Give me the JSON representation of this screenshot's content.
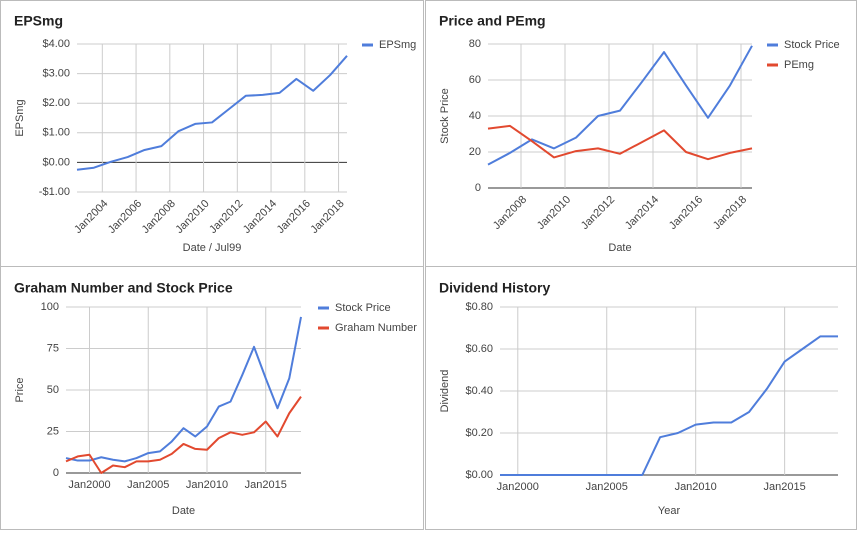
{
  "chart_data": [
    {
      "type": "line",
      "title": "EPSmg",
      "xlabel": "Date / Jul99",
      "ylabel": "EPSmg",
      "x": [
        "2002-07",
        "2003-07",
        "2004-07",
        "2005-07",
        "2006-07",
        "2007-07",
        "2008-07",
        "2009-07",
        "2010-07",
        "2011-07",
        "2012-07",
        "2013-07",
        "2014-07",
        "2015-07",
        "2016-07",
        "2017-07",
        "2018-07"
      ],
      "series": [
        {
          "name": "EPSmg",
          "color": "#4f7ddb",
          "values": [
            -0.25,
            -0.18,
            0.02,
            0.18,
            0.42,
            0.55,
            1.05,
            1.3,
            1.35,
            1.8,
            2.25,
            2.28,
            2.35,
            2.82,
            2.42,
            2.95,
            3.6
          ]
        }
      ],
      "xlim": [
        "2002-07",
        "2018-07"
      ],
      "xticks": [
        {
          "value": "2004-01",
          "label": "Jan2004"
        },
        {
          "value": "2006-01",
          "label": "Jan2006"
        },
        {
          "value": "2008-01",
          "label": "Jan2008"
        },
        {
          "value": "2010-01",
          "label": "Jan2010"
        },
        {
          "value": "2012-01",
          "label": "Jan2012"
        },
        {
          "value": "2014-01",
          "label": "Jan2014"
        },
        {
          "value": "2016-01",
          "label": "Jan2016"
        },
        {
          "value": "2018-01",
          "label": "Jan2018"
        }
      ],
      "ylim": [
        -1,
        4
      ],
      "yticks": [
        {
          "value": -1,
          "label": "-$1.00"
        },
        {
          "value": 0,
          "label": "$0.00"
        },
        {
          "value": 1,
          "label": "$1.00"
        },
        {
          "value": 2,
          "label": "$2.00"
        },
        {
          "value": 3,
          "label": "$3.00"
        },
        {
          "value": 4,
          "label": "$4.00"
        }
      ],
      "grid": true,
      "legend": "right"
    },
    {
      "type": "line",
      "title": "Price and PEmg",
      "xlabel": "Date",
      "ylabel": "Stock Price",
      "x": [
        "2006-07",
        "2007-07",
        "2008-07",
        "2009-07",
        "2010-07",
        "2011-07",
        "2012-07",
        "2013-07",
        "2014-07",
        "2015-07",
        "2016-07",
        "2017-07",
        "2018-07"
      ],
      "series": [
        {
          "name": "Stock Price",
          "color": "#4f7ddb",
          "values": [
            13,
            19.5,
            27,
            22,
            28,
            40,
            43,
            59,
            75.5,
            57,
            39,
            57,
            79
          ]
        },
        {
          "name": "PEmg",
          "color": "#e2492f",
          "values": [
            33,
            34.5,
            26,
            17,
            20.5,
            22,
            19,
            25.5,
            32,
            20,
            16,
            19.5,
            22
          ]
        }
      ],
      "xlim": [
        "2006-07",
        "2018-07"
      ],
      "xticks": [
        {
          "value": "2008-01",
          "label": "Jan2008"
        },
        {
          "value": "2010-01",
          "label": "Jan2010"
        },
        {
          "value": "2012-01",
          "label": "Jan2012"
        },
        {
          "value": "2014-01",
          "label": "Jan2014"
        },
        {
          "value": "2016-01",
          "label": "Jan2016"
        },
        {
          "value": "2018-01",
          "label": "Jan2018"
        }
      ],
      "ylim": [
        0,
        80
      ],
      "yticks": [
        0,
        20,
        40,
        60,
        80
      ],
      "grid": true,
      "legend": "right"
    },
    {
      "type": "line",
      "title": "Graham Number and Stock Price",
      "xlabel": "Date",
      "ylabel": "Price",
      "x": [
        "1998-01",
        "1999-01",
        "2000-01",
        "2001-01",
        "2002-01",
        "2003-01",
        "2004-01",
        "2005-01",
        "2006-01",
        "2007-01",
        "2008-01",
        "2009-01",
        "2010-01",
        "2011-01",
        "2012-01",
        "2013-01",
        "2014-01",
        "2015-01",
        "2016-01",
        "2017-01",
        "2018-01"
      ],
      "series": [
        {
          "name": "Stock Price",
          "color": "#4f7ddb",
          "values": [
            9,
            7.5,
            7.5,
            9.5,
            8,
            7,
            9,
            12,
            13,
            19,
            27,
            22,
            28,
            40,
            43,
            59,
            76,
            57,
            39,
            57,
            94
          ]
        },
        {
          "name": "Graham Number",
          "color": "#e2492f",
          "values": [
            7,
            10,
            11,
            0,
            4.5,
            3.5,
            7,
            7,
            8,
            11.5,
            17.5,
            14.5,
            14,
            21,
            24.5,
            23,
            24.5,
            31,
            22,
            36,
            46
          ]
        }
      ],
      "xlim": [
        "1998-01",
        "2018-01"
      ],
      "xticks": [
        {
          "value": "2000-01",
          "label": "Jan2000"
        },
        {
          "value": "2005-01",
          "label": "Jan2005"
        },
        {
          "value": "2010-01",
          "label": "Jan2010"
        },
        {
          "value": "2015-01",
          "label": "Jan2015"
        }
      ],
      "ylim": [
        0,
        100
      ],
      "yticks": [
        0,
        25,
        50,
        75,
        100
      ],
      "grid": true,
      "legend": "right"
    },
    {
      "type": "line",
      "title": "Dividend History",
      "xlabel": "Year",
      "ylabel": "Dividend",
      "x": [
        "1999-01",
        "2000-01",
        "2001-01",
        "2002-01",
        "2003-01",
        "2004-01",
        "2005-01",
        "2006-01",
        "2007-01",
        "2008-01",
        "2009-01",
        "2010-01",
        "2011-01",
        "2012-01",
        "2013-01",
        "2014-01",
        "2015-01",
        "2016-01",
        "2017-01",
        "2018-01"
      ],
      "series": [
        {
          "name": "Dividend",
          "color": "#4f7ddb",
          "values": [
            0,
            0,
            0,
            0,
            0,
            0,
            0,
            0,
            0,
            0.18,
            0.2,
            0.24,
            0.25,
            0.25,
            0.3,
            0.41,
            0.54,
            0.6,
            0.66,
            0.66
          ]
        }
      ],
      "xlim": [
        "1999-01",
        "2018-01"
      ],
      "xticks": [
        {
          "value": "2000-01",
          "label": "Jan2000"
        },
        {
          "value": "2005-01",
          "label": "Jan2005"
        },
        {
          "value": "2010-01",
          "label": "Jan2010"
        },
        {
          "value": "2015-01",
          "label": "Jan2015"
        }
      ],
      "ylim": [
        0,
        0.8
      ],
      "yticks": [
        {
          "value": 0,
          "label": "$0.00"
        },
        {
          "value": 0.2,
          "label": "$0.20"
        },
        {
          "value": 0.4,
          "label": "$0.40"
        },
        {
          "value": 0.6,
          "label": "$0.60"
        },
        {
          "value": 0.8,
          "label": "$0.80"
        }
      ],
      "grid": true
    }
  ]
}
